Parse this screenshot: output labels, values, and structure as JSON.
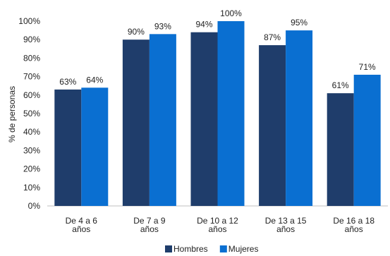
{
  "chart_data": {
    "type": "bar",
    "categories": [
      [
        "De 4 a 6",
        "años"
      ],
      [
        "De 7 a 9",
        "años"
      ],
      [
        "De 10 a 12",
        "años"
      ],
      [
        "De 13 a 15",
        "años"
      ],
      [
        "De 16 a 18",
        "años"
      ]
    ],
    "series": [
      {
        "name": "Hombres",
        "values": [
          63,
          90,
          94,
          87,
          61
        ],
        "labels": [
          "63%",
          "90%",
          "94%",
          "87%",
          "61%"
        ],
        "color": "#1f3d6b"
      },
      {
        "name": "Mujeres",
        "values": [
          64,
          93,
          100,
          95,
          71
        ],
        "labels": [
          "64%",
          "93%",
          "100%",
          "95%",
          "71%"
        ],
        "color": "#0a6fd1"
      }
    ],
    "ylabel": "% de personas",
    "ylim": [
      0,
      100
    ],
    "yticks": [
      "0%",
      "10%",
      "20%",
      "30%",
      "40%",
      "50%",
      "60%",
      "70%",
      "80%",
      "90%",
      "100%"
    ],
    "grid": false,
    "legend": "bottom-center"
  }
}
